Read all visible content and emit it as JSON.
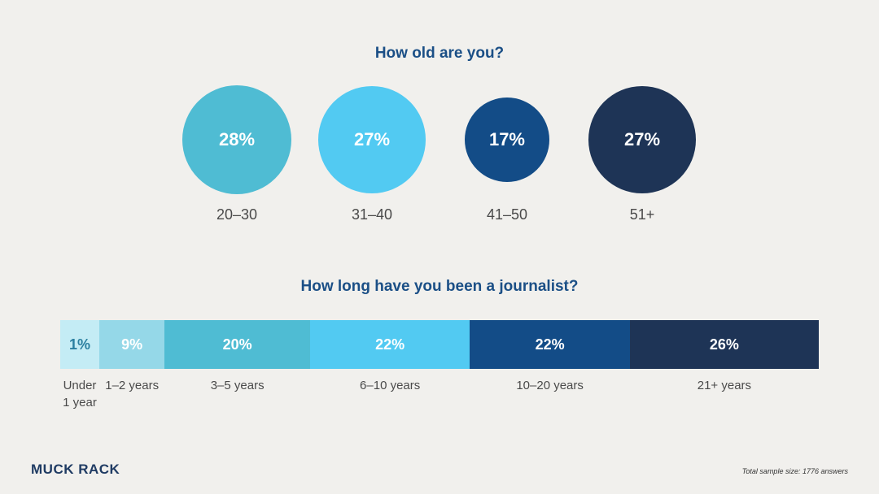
{
  "chart_data": [
    {
      "type": "bubble",
      "title": "How old are you?",
      "categories": [
        "20–30",
        "31–40",
        "41–50",
        "51+"
      ],
      "values": [
        28,
        27,
        17,
        27
      ],
      "labels": [
        "28%",
        "27%",
        "17%",
        "27%"
      ],
      "colors": [
        "#4fbcd3",
        "#52caf2",
        "#134c87",
        "#1e3456"
      ],
      "text_colors": [
        "#ffffff",
        "#ffffff",
        "#ffffff",
        "#ffffff"
      ]
    },
    {
      "type": "stacked-bar",
      "title": "How long have you been a journalist?",
      "categories": [
        "Under 1 year",
        "1–2 years",
        "3–5 years",
        "6–10 years",
        "10–20 years",
        "21+ years"
      ],
      "values": [
        1,
        9,
        20,
        22,
        22,
        26
      ],
      "labels": [
        "1%",
        "9%",
        "20%",
        "22%",
        "22%",
        "26%"
      ],
      "colors": [
        "#c4ecf5",
        "#95d8e8",
        "#4fbcd3",
        "#52caf2",
        "#134c87",
        "#1e3456"
      ],
      "text_colors": [
        "#2b7fa0",
        "#ffffff",
        "#ffffff",
        "#ffffff",
        "#ffffff",
        "#ffffff"
      ]
    }
  ],
  "brand": {
    "logo_text": "MUCK RACK"
  },
  "footnote": "Total sample size: 1776 answers"
}
